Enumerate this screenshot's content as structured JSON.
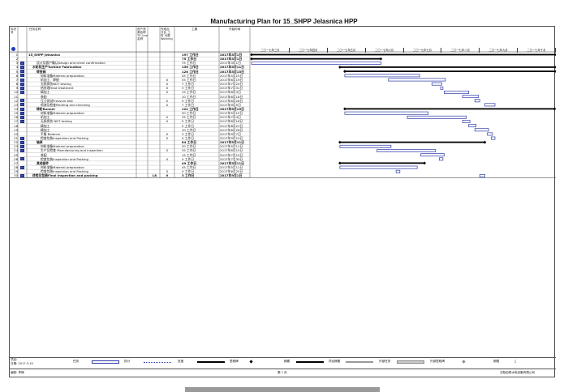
{
  "page_title": "Manufacturing Plan for 15_SHPP Jelasnica    HPP",
  "columns": {
    "id": "标识号",
    "name": "任务名称",
    "resource": "资产资源名称 TP Line 名称",
    "hours": "完成百分比 工时 分配 Working",
    "duration": "工期",
    "start": "开始时间"
  },
  "timeline": [
    "二〇一七年三月",
    "二〇一七年四月",
    "二〇一七年五月",
    "二〇一七年六月",
    "二〇一七年七月",
    "二〇一七年八月",
    "二〇一七年九月",
    "二〇一七年十月"
  ],
  "rows": [
    {
      "id": "1",
      "name": "15_SHPP Jelasnica",
      "pct": "",
      "dur": "197 工作日",
      "start": "2017年3月1日",
      "bold": true,
      "ind": 0
    },
    {
      "id": "2",
      "name": "",
      "pct": "",
      "dur": "75 工作日",
      "start": "2017年3月1日",
      "bold": true,
      "ind": 1
    },
    {
      "id": "3",
      "name": "设计及客户确认Design and client confirmation",
      "pct": "",
      "dur": "75 工作日",
      "start": "2017年3月1日",
      "bold": false,
      "ind": 2
    },
    {
      "id": "4",
      "name": "水轮机生产Turbine Fabrication",
      "pct": "",
      "dur": "136 工作日",
      "start": "2017年5月11日",
      "bold": true,
      "ind": 1
    },
    {
      "id": "5",
      "name": "转变阀",
      "pct": "",
      "dur": "126 工作日",
      "start": "2017年5月15日",
      "bold": true,
      "ind": 2
    },
    {
      "id": "6",
      "name": "材料准备Material preparation",
      "pct": "",
      "dur": "45 工作日",
      "start": "2017年5月15日",
      "bold": false,
      "ind": 3
    },
    {
      "id": "7",
      "name": "机加工、焊接",
      "pct": "0",
      "dur": "35 工作日",
      "start": "2017年6月19日",
      "bold": false,
      "ind": 3
    },
    {
      "id": "8",
      "name": "无损探伤NDT testing",
      "pct": "0",
      "dur": "7 工作日",
      "start": "2017年7月24日",
      "bold": false,
      "ind": 3
    },
    {
      "id": "9",
      "name": "热处理Heat treatment",
      "pct": "0",
      "dur": "3 工作日",
      "start": "2017年7月31日",
      "bold": false,
      "ind": 3
    },
    {
      "id": "10",
      "name": "精加工",
      "pct": "0",
      "dur": "15 工作日",
      "start": "2017年8月3日",
      "bold": false,
      "ind": 3
    },
    {
      "id": "11",
      "name": "装配",
      "pct": "",
      "dur": "10 工作日",
      "start": "2017年8月18日",
      "bold": false,
      "ind": 3
    },
    {
      "id": "12",
      "name": "压力测试Pressure test",
      "pct": "0",
      "dur": "5 工作日",
      "start": "2017年8月28日",
      "bold": false,
      "ind": 3
    },
    {
      "id": "13",
      "name": "喷漆及检查Painting and checking",
      "pct": "0",
      "dur": "7 工作日",
      "start": "2017年9月5日",
      "bold": false,
      "ind": 3
    },
    {
      "id": "14",
      "name": "转轮Runner",
      "pct": "",
      "dur": "122 工作日",
      "start": "2017年5月15日",
      "bold": true,
      "ind": 2
    },
    {
      "id": "15",
      "name": "材料准备Material preparation",
      "pct": "",
      "dur": "50 工作日",
      "start": "2017年5月15日",
      "bold": false,
      "ind": 3
    },
    {
      "id": "16",
      "name": "机加工",
      "pct": "0",
      "dur": "35 工作日",
      "start": "2017年7月4日",
      "bold": false,
      "ind": 3
    },
    {
      "id": "17",
      "name": "无损探伤 NDT testing",
      "pct": "0",
      "dur": "5 工作日",
      "start": "2017年8月18日",
      "bold": false,
      "ind": 3
    },
    {
      "id": "18",
      "name": "精加工",
      "pct": "",
      "dur": "5 工作日",
      "start": "2017年8月23日",
      "bold": false,
      "ind": 3
    },
    {
      "id": "19",
      "name": "精加工",
      "pct": "",
      "dur": "10 工作日",
      "start": "2017年8月28日",
      "bold": false,
      "ind": 3
    },
    {
      "id": "20",
      "name": "平衡 Balance",
      "pct": "0",
      "dur": "3 工作日",
      "start": "2017年9月7日",
      "bold": false,
      "ind": 3
    },
    {
      "id": "21",
      "name": "检查包装Inspection and Packing",
      "pct": "0",
      "dur": "4 工作日",
      "start": "2017年9月10日",
      "bold": false,
      "ind": 3
    },
    {
      "id": "22",
      "name": "轴承",
      "pct": "",
      "dur": "84 工作日",
      "start": "2017年5月11日",
      "bold": true,
      "ind": 2
    },
    {
      "id": "23",
      "name": "材料准备Material preparation",
      "pct": "",
      "dur": "30 工作日",
      "start": "2017年5月11日",
      "bold": false,
      "ind": 3
    },
    {
      "id": "24",
      "name": "生产及检查 Manufacturing and inspection",
      "pct": "0",
      "dur": "35 工作日",
      "start": "2017年6月10日",
      "bold": false,
      "ind": 3
    },
    {
      "id": "25",
      "name": "装配",
      "pct": "",
      "dur": "15 工作日",
      "start": "2017年7月15日",
      "bold": false,
      "ind": 3
    },
    {
      "id": "26",
      "name": "检查包装Inspection and Packing",
      "pct": "0",
      "dur": "4 工作日",
      "start": "2017年7月30日",
      "bold": false,
      "ind": 3
    },
    {
      "id": "27",
      "name": "其他部件",
      "pct": "",
      "dur": "49 工作日",
      "start": "2017年5月11日",
      "bold": true,
      "ind": 2
    },
    {
      "id": "28",
      "name": "材料准备Material preparation",
      "pct": "",
      "dur": "45 工作日",
      "start": "2017年5月11日",
      "bold": false,
      "ind": 3
    },
    {
      "id": "29",
      "name": "检查包装Inspection and Packing",
      "pct": "0",
      "dur": "4 工作日",
      "start": "2017年6月25日",
      "bold": false,
      "ind": 3
    },
    {
      "id": "30",
      "name": "终检及包装Final inspection and packing",
      "pct": "0",
      "dur": "3 工作日",
      "start": "2017年9月1日",
      "bold": true,
      "ind": 1,
      "res": "L8"
    }
  ],
  "footer": {
    "project_label": "项目:",
    "date_label": "日期: 2017.3.10",
    "legend": {
      "task": "任务",
      "split": "拆分",
      "progress": "进度",
      "milestone": "里程碑",
      "summary": "摘要",
      "project_summary": "项目摘要",
      "external_tasks": "外部任务",
      "external_milestone": "外部里程碑",
      "deadline": "期限"
    },
    "prepared_by": "编制: 李畅",
    "page": "第 1 页",
    "company": "沈阳佰泰水电设备有限公司"
  },
  "colors": {
    "task": "#2b3aa8",
    "summary": "#000000",
    "grid": "#555555",
    "deadline": "#2a9a2a"
  }
}
